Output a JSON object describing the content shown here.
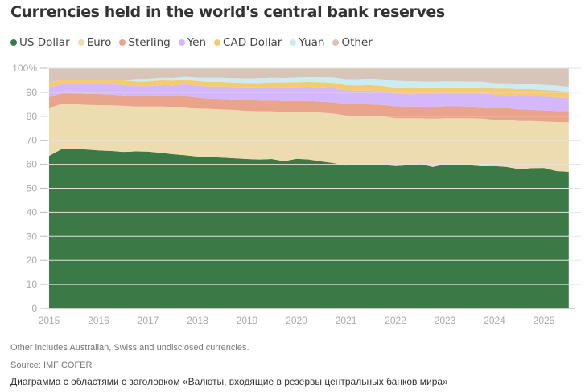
{
  "chart_data": {
    "type": "area",
    "stacked": true,
    "title": "Currencies held in the world's central bank reserves",
    "xlabel": "",
    "ylabel": "",
    "ylim": [
      0,
      100
    ],
    "yticks": [
      "0",
      "10",
      "20",
      "30",
      "40",
      "50",
      "60",
      "70",
      "80",
      "90",
      "100%"
    ],
    "xticks": [
      "2015",
      "2016",
      "2017",
      "2018",
      "2019",
      "2020",
      "2021",
      "2022",
      "2023",
      "2024",
      "2025"
    ],
    "grid": true,
    "legend_position": "top-left",
    "x": [
      "2015Q1",
      "2015Q2",
      "2015Q3",
      "2015Q4",
      "2016Q1",
      "2016Q2",
      "2016Q3",
      "2016Q4",
      "2017Q1",
      "2017Q2",
      "2017Q3",
      "2017Q4",
      "2018Q1",
      "2018Q2",
      "2018Q3",
      "2018Q4",
      "2019Q1",
      "2019Q2",
      "2019Q3",
      "2019Q4",
      "2020Q1",
      "2020Q2",
      "2020Q3",
      "2020Q4",
      "2021Q1",
      "2021Q2",
      "2021Q3",
      "2021Q4",
      "2022Q1",
      "2022Q2",
      "2022Q3",
      "2022Q4",
      "2023Q1",
      "2023Q2",
      "2023Q3",
      "2023Q4",
      "2024Q1",
      "2024Q2",
      "2024Q3",
      "2024Q4",
      "2025Q1",
      "2025Q2",
      "2025Q3"
    ],
    "series": [
      {
        "name": "US Dollar",
        "color": "#3b7a46",
        "values": [
          63.5,
          66.3,
          66.5,
          66.2,
          65.8,
          65.6,
          65.2,
          65.4,
          65.3,
          64.8,
          64.2,
          63.8,
          63.2,
          63.0,
          62.8,
          62.5,
          62.2,
          62.0,
          62.2,
          61.3,
          62.3,
          62.0,
          61.2,
          60.5,
          59.5,
          60.0,
          59.9,
          59.8,
          59.3,
          59.6,
          60.2,
          58.9,
          60.0,
          59.8,
          59.6,
          59.2,
          59.3,
          58.9,
          58.0,
          58.4,
          58.5,
          57.2,
          56.9
        ]
      },
      {
        "name": "Euro",
        "color": "#eddcb0",
        "values": [
          20.0,
          18.7,
          18.5,
          18.5,
          18.8,
          18.9,
          19.1,
          18.6,
          18.7,
          19.2,
          19.7,
          20.1,
          20.0,
          20.0,
          20.0,
          20.1,
          20.0,
          20.1,
          19.8,
          20.5,
          19.5,
          19.8,
          20.3,
          20.6,
          20.8,
          20.2,
          20.2,
          20.1,
          19.9,
          19.6,
          19.0,
          20.1,
          19.2,
          19.4,
          19.6,
          19.8,
          19.2,
          19.6,
          20.0,
          19.6,
          19.3,
          20.4,
          20.6
        ]
      },
      {
        "name": "Sterling",
        "color": "#e9a48b",
        "values": [
          4.5,
          4.6,
          4.6,
          4.7,
          4.7,
          4.6,
          4.4,
          4.4,
          4.3,
          4.4,
          4.4,
          4.5,
          4.6,
          4.4,
          4.4,
          4.4,
          4.5,
          4.5,
          4.5,
          4.6,
          4.6,
          4.6,
          4.6,
          4.7,
          4.7,
          4.8,
          4.8,
          4.8,
          4.9,
          4.8,
          4.8,
          4.9,
          4.9,
          4.9,
          4.8,
          4.8,
          4.8,
          4.9,
          4.8,
          4.7,
          4.6,
          4.6,
          4.6
        ]
      },
      {
        "name": "Yen",
        "color": "#d4b8fb",
        "values": [
          4.0,
          3.7,
          3.8,
          3.9,
          4.0,
          4.2,
          4.4,
          4.2,
          4.3,
          4.6,
          4.6,
          4.9,
          5.0,
          5.0,
          5.2,
          5.2,
          5.3,
          5.4,
          5.7,
          5.8,
          5.8,
          5.9,
          6.0,
          6.0,
          5.8,
          5.7,
          5.8,
          5.5,
          5.4,
          5.2,
          5.3,
          5.4,
          5.4,
          5.4,
          5.5,
          5.7,
          5.7,
          5.5,
          5.8,
          5.8,
          5.8,
          5.8,
          5.5
        ]
      },
      {
        "name": "CAD Dollar",
        "color": "#f5cb72",
        "values": [
          2.0,
          1.9,
          1.9,
          1.9,
          2.0,
          2.0,
          1.9,
          1.9,
          1.9,
          2.0,
          2.0,
          2.0,
          1.9,
          1.9,
          1.9,
          1.8,
          1.9,
          1.9,
          1.9,
          1.9,
          2.0,
          2.0,
          2.1,
          2.1,
          2.2,
          2.2,
          2.3,
          2.4,
          2.4,
          2.5,
          2.4,
          2.4,
          2.5,
          2.5,
          2.5,
          2.6,
          2.6,
          2.7,
          2.7,
          2.8,
          2.8,
          2.7,
          2.6
        ]
      },
      {
        "name": "Yuan",
        "color": "#cbecf1",
        "values": [
          0,
          0,
          0,
          0,
          0,
          0,
          0,
          1.1,
          1.1,
          1.1,
          1.1,
          1.2,
          1.4,
          1.8,
          1.8,
          1.9,
          1.9,
          2.0,
          2.0,
          1.9,
          2.0,
          2.0,
          2.1,
          2.3,
          2.5,
          2.6,
          2.7,
          2.8,
          2.9,
          2.9,
          2.8,
          2.7,
          2.6,
          2.5,
          2.4,
          2.3,
          2.2,
          2.2,
          2.2,
          2.2,
          2.1,
          2.1,
          2.1
        ]
      },
      {
        "name": "Other",
        "color": "#d8c5b9",
        "values": [
          6.0,
          4.8,
          4.7,
          4.8,
          4.7,
          4.7,
          5.0,
          4.4,
          4.4,
          3.9,
          4.0,
          3.5,
          3.9,
          3.9,
          3.9,
          4.1,
          4.2,
          4.1,
          3.9,
          4.0,
          3.8,
          3.7,
          3.7,
          3.8,
          4.5,
          4.5,
          4.3,
          4.6,
          5.2,
          5.4,
          5.5,
          5.6,
          5.4,
          5.5,
          5.6,
          5.6,
          6.2,
          6.2,
          6.5,
          6.5,
          6.9,
          7.2,
          7.7
        ]
      }
    ]
  },
  "notes": {
    "other": "Other includes Australian, Swiss and undisclosed currencies.",
    "source": "Source: IMF COFER",
    "description": "Диаграмма с областями с заголовком «Валюты, входящие в резервы центральных банков мира»"
  }
}
